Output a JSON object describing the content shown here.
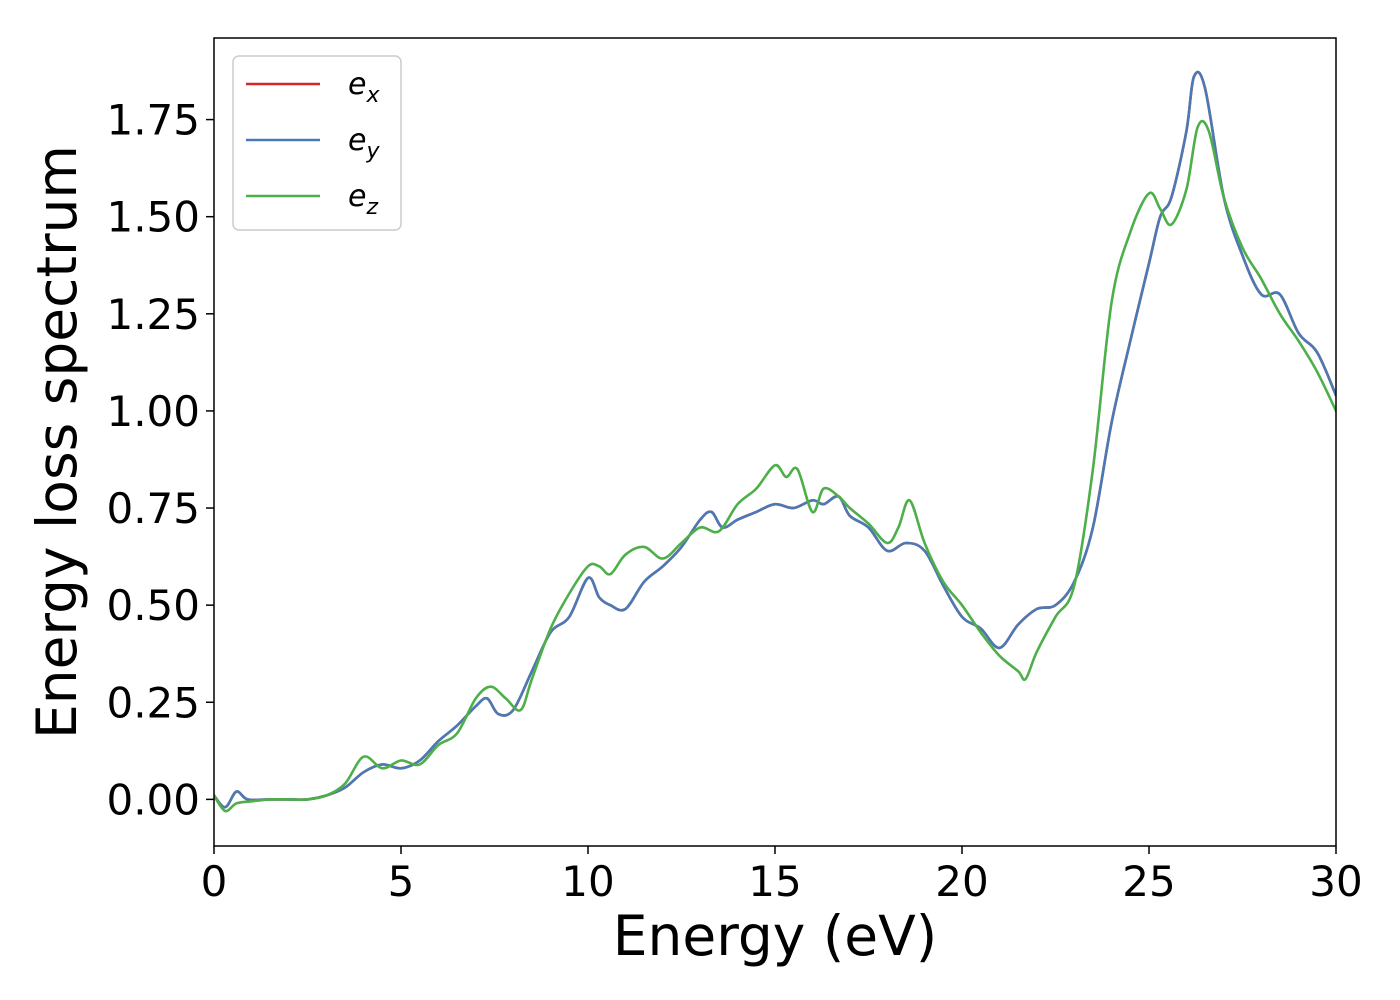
{
  "chart_data": {
    "type": "line",
    "title": "",
    "xlabel": "Energy (eV)",
    "ylabel": "Energy loss spectrum",
    "xlim": [
      0,
      30
    ],
    "ylim": [
      -0.12,
      1.96
    ],
    "xticks": [
      {
        "value": 0,
        "label": "0"
      },
      {
        "value": 5,
        "label": "5"
      },
      {
        "value": 10,
        "label": "10"
      },
      {
        "value": 15,
        "label": "15"
      },
      {
        "value": 20,
        "label": "20"
      },
      {
        "value": 25,
        "label": "25"
      },
      {
        "value": 30,
        "label": "30"
      }
    ],
    "yticks": [
      {
        "value": 0.0,
        "label": "0.00"
      },
      {
        "value": 0.25,
        "label": "0.25"
      },
      {
        "value": 0.5,
        "label": "0.50"
      },
      {
        "value": 0.75,
        "label": "0.75"
      },
      {
        "value": 1.0,
        "label": "1.00"
      },
      {
        "value": 1.25,
        "label": "1.25"
      },
      {
        "value": 1.5,
        "label": "1.50"
      },
      {
        "value": 1.75,
        "label": "1.75"
      }
    ],
    "grid": false,
    "legend_position": "top-left",
    "series": [
      {
        "name": "ex",
        "legend_base": "e",
        "legend_sub": "x",
        "color": "#d62728",
        "x": [
          0,
          0.3,
          0.6,
          0.9,
          1.5,
          2,
          2.5,
          3,
          3.5,
          4,
          4.5,
          5,
          5.5,
          6,
          6.5,
          7,
          7.3,
          7.6,
          8,
          8.5,
          9,
          9.5,
          10,
          10.3,
          10.6,
          11,
          11.5,
          12,
          12.5,
          13,
          13.3,
          13.6,
          14,
          14.5,
          15,
          15.5,
          16,
          16.3,
          16.7,
          17,
          17.5,
          18,
          18.5,
          19,
          19.5,
          20,
          20.5,
          21,
          21.5,
          22,
          22.5,
          23,
          23.5,
          24,
          24.5,
          25,
          25.3,
          25.6,
          26,
          26.2,
          26.5,
          27,
          27.5,
          28,
          28.5,
          29,
          29.5,
          30
        ],
        "y": [
          0.01,
          -0.02,
          0.02,
          0.0,
          0.0,
          0.0,
          0.0,
          0.01,
          0.03,
          0.07,
          0.09,
          0.08,
          0.1,
          0.15,
          0.19,
          0.24,
          0.26,
          0.22,
          0.23,
          0.33,
          0.43,
          0.47,
          0.57,
          0.52,
          0.5,
          0.49,
          0.56,
          0.6,
          0.65,
          0.72,
          0.74,
          0.7,
          0.72,
          0.74,
          0.76,
          0.75,
          0.77,
          0.76,
          0.78,
          0.73,
          0.7,
          0.64,
          0.66,
          0.64,
          0.55,
          0.47,
          0.44,
          0.39,
          0.45,
          0.49,
          0.5,
          0.56,
          0.7,
          0.97,
          1.18,
          1.38,
          1.5,
          1.55,
          1.72,
          1.86,
          1.83,
          1.55,
          1.4,
          1.3,
          1.3,
          1.2,
          1.15,
          1.04
        ]
      },
      {
        "name": "ey",
        "legend_base": "e",
        "legend_sub": "y",
        "color": "#4a7ab5",
        "x": [
          0,
          0.3,
          0.6,
          0.9,
          1.5,
          2,
          2.5,
          3,
          3.5,
          4,
          4.5,
          5,
          5.5,
          6,
          6.5,
          7,
          7.3,
          7.6,
          8,
          8.5,
          9,
          9.5,
          10,
          10.3,
          10.6,
          11,
          11.5,
          12,
          12.5,
          13,
          13.3,
          13.6,
          14,
          14.5,
          15,
          15.5,
          16,
          16.3,
          16.7,
          17,
          17.5,
          18,
          18.5,
          19,
          19.5,
          20,
          20.5,
          21,
          21.5,
          22,
          22.5,
          23,
          23.5,
          24,
          24.5,
          25,
          25.3,
          25.6,
          26,
          26.2,
          26.5,
          27,
          27.5,
          28,
          28.5,
          29,
          29.5,
          30
        ],
        "y": [
          0.01,
          -0.02,
          0.02,
          0.0,
          0.0,
          0.0,
          0.0,
          0.01,
          0.03,
          0.07,
          0.09,
          0.08,
          0.1,
          0.15,
          0.19,
          0.24,
          0.26,
          0.22,
          0.23,
          0.33,
          0.43,
          0.47,
          0.57,
          0.52,
          0.5,
          0.49,
          0.56,
          0.6,
          0.65,
          0.72,
          0.74,
          0.7,
          0.72,
          0.74,
          0.76,
          0.75,
          0.77,
          0.76,
          0.78,
          0.73,
          0.7,
          0.64,
          0.66,
          0.64,
          0.55,
          0.47,
          0.44,
          0.39,
          0.45,
          0.49,
          0.5,
          0.56,
          0.7,
          0.97,
          1.18,
          1.38,
          1.5,
          1.55,
          1.72,
          1.86,
          1.83,
          1.55,
          1.4,
          1.3,
          1.3,
          1.2,
          1.15,
          1.04
        ]
      },
      {
        "name": "ez",
        "legend_base": "e",
        "legend_sub": "z",
        "color": "#4daf4a",
        "x": [
          0,
          0.3,
          0.6,
          1,
          1.5,
          2,
          2.5,
          3,
          3.5,
          4,
          4.5,
          5,
          5.5,
          6,
          6.5,
          7,
          7.4,
          7.8,
          8.2,
          8.5,
          9,
          9.5,
          10,
          10.3,
          10.6,
          11,
          11.5,
          12,
          12.5,
          13,
          13.5,
          14,
          14.5,
          15,
          15.3,
          15.6,
          16,
          16.3,
          16.7,
          17,
          17.5,
          18,
          18.3,
          18.6,
          19,
          19.5,
          20,
          20.5,
          21,
          21.5,
          21.7,
          22,
          22.5,
          23,
          23.5,
          24,
          24.5,
          25,
          25.3,
          25.6,
          26,
          26.3,
          26.6,
          27,
          27.5,
          28,
          28.5,
          29,
          29.5,
          30
        ],
        "y": [
          0.01,
          -0.03,
          -0.01,
          -0.005,
          0.0,
          0.0,
          0.0,
          0.01,
          0.04,
          0.11,
          0.08,
          0.1,
          0.09,
          0.14,
          0.17,
          0.26,
          0.29,
          0.26,
          0.23,
          0.31,
          0.44,
          0.53,
          0.6,
          0.6,
          0.58,
          0.63,
          0.65,
          0.62,
          0.66,
          0.7,
          0.69,
          0.76,
          0.8,
          0.86,
          0.83,
          0.85,
          0.74,
          0.8,
          0.78,
          0.75,
          0.71,
          0.66,
          0.7,
          0.77,
          0.66,
          0.56,
          0.5,
          0.43,
          0.37,
          0.33,
          0.31,
          0.38,
          0.47,
          0.55,
          0.85,
          1.28,
          1.46,
          1.56,
          1.52,
          1.48,
          1.57,
          1.73,
          1.72,
          1.55,
          1.42,
          1.34,
          1.25,
          1.18,
          1.1,
          1.0
        ]
      }
    ]
  }
}
